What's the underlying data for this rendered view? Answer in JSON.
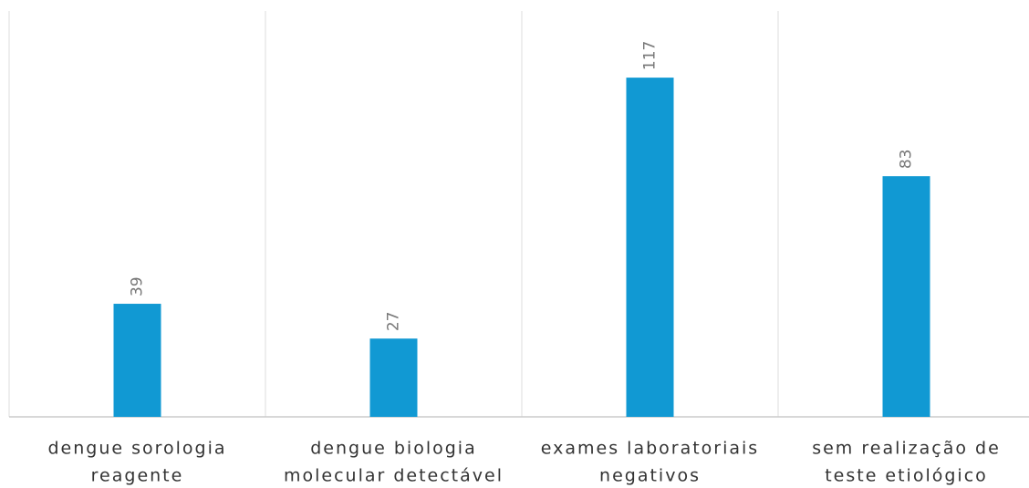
{
  "chart_data": {
    "type": "bar",
    "categories": [
      [
        "dengue sorologia",
        "reagente"
      ],
      [
        "dengue biologia",
        "molecular detectável"
      ],
      [
        "exames laboratoriais",
        "negativos"
      ],
      [
        "sem realização de",
        "teste etiológico"
      ]
    ],
    "values": [
      39,
      27,
      117,
      83
    ],
    "color": "#1199d3",
    "ylim": [
      0,
      140
    ]
  }
}
